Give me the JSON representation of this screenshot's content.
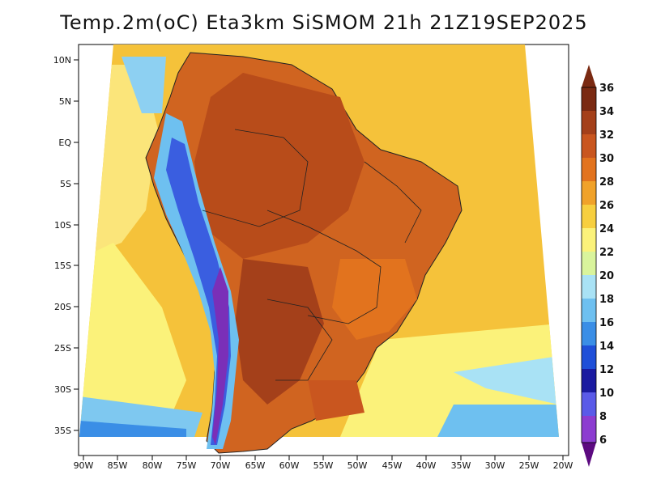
{
  "title": "Temp.2m(oC) Eta3km SiSMOM 21h 21Z19SEP2025",
  "map": {
    "lat_labels": [
      "10N",
      "5N",
      "EQ",
      "5S",
      "10S",
      "15S",
      "20S",
      "25S",
      "30S",
      "35S"
    ],
    "lon_labels": [
      "90W",
      "85W",
      "80W",
      "75W",
      "70W",
      "65W",
      "60W",
      "55W",
      "50W",
      "45W",
      "40W",
      "35W",
      "30W",
      "25W",
      "20W"
    ]
  },
  "colorbar": {
    "labels": [
      "36",
      "34",
      "32",
      "30",
      "28",
      "26",
      "24",
      "22",
      "20",
      "18",
      "16",
      "14",
      "12",
      "10",
      "8",
      "6"
    ],
    "colors": [
      "#7a2a12",
      "#a4401a",
      "#c9561f",
      "#e2731e",
      "#f0a22a",
      "#f7cf3f",
      "#fbf27a",
      "#d9f49c",
      "#a9e2f5",
      "#6ec0f0",
      "#3a8ee6",
      "#1f4fd8",
      "#1a1aa0",
      "#5a5ae8",
      "#8c3cd0",
      "#5c0a80"
    ]
  }
}
